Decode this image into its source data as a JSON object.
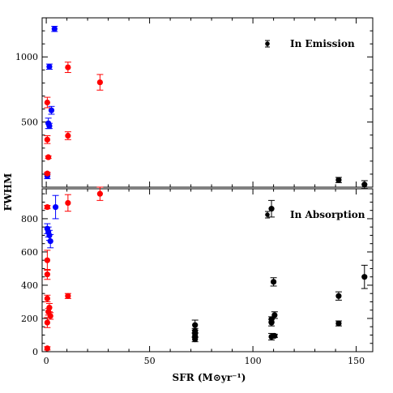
{
  "chart_data": {
    "type": "scatter",
    "xlabel": "SFR (M⊙yr⁻¹)",
    "ylabel": "FWHM",
    "xlim": [
      -2,
      158
    ],
    "x_ticks": [
      0,
      50,
      100,
      150
    ],
    "panels": [
      {
        "legend": "In Emission",
        "legend_position": "top-right",
        "ylim": [
          0,
          1300
        ],
        "y_ticks": [
          500,
          1000
        ],
        "series": [
          {
            "color": "#0000ff",
            "points": [
              {
                "x": 4.0,
                "y": 1215,
                "err": 20
              },
              {
                "x": 1.5,
                "y": 925,
                "err": 20
              },
              {
                "x": 2.5,
                "y": 590,
                "err": 30
              },
              {
                "x": 1.0,
                "y": 490,
                "err": 40
              },
              {
                "x": 1.5,
                "y": 470,
                "err": 20
              },
              {
                "x": 0.5,
                "y": 85,
                "err": 20
              }
            ]
          },
          {
            "color": "#ff0000",
            "points": [
              {
                "x": 10.5,
                "y": 920,
                "err": 40
              },
              {
                "x": 26.0,
                "y": 805,
                "err": 60
              },
              {
                "x": 0.5,
                "y": 650,
                "err": 40
              },
              {
                "x": 10.5,
                "y": 395,
                "err": 30
              },
              {
                "x": 0.5,
                "y": 365,
                "err": 30
              },
              {
                "x": 1.0,
                "y": 230,
                "err": 10
              },
              {
                "x": 0.5,
                "y": 105,
                "err": 10
              }
            ]
          },
          {
            "color": "#000000",
            "points": [
              {
                "x": 141.5,
                "y": 55,
                "err": 20
              },
              {
                "x": 154.0,
                "y": 20,
                "err": 30
              }
            ]
          }
        ]
      },
      {
        "legend": "In Absorption",
        "legend_position": "top-right",
        "ylim": [
          0,
          980
        ],
        "y_ticks": [
          0,
          200,
          400,
          600,
          800
        ],
        "series": [
          {
            "color": "#0000ff",
            "points": [
              {
                "x": 4.5,
                "y": 870,
                "err": 70
              },
              {
                "x": 0.5,
                "y": 740,
                "err": 30
              },
              {
                "x": 1.0,
                "y": 720,
                "err": 30
              },
              {
                "x": 1.5,
                "y": 700,
                "err": 30
              },
              {
                "x": 2.0,
                "y": 665,
                "err": 40
              }
            ]
          },
          {
            "color": "#ff0000",
            "points": [
              {
                "x": 0.5,
                "y": 870,
                "err": 10
              },
              {
                "x": 10.5,
                "y": 895,
                "err": 50
              },
              {
                "x": 26.0,
                "y": 950,
                "err": 40
              },
              {
                "x": 0.5,
                "y": 550,
                "err": 60
              },
              {
                "x": 0.5,
                "y": 465,
                "err": 30
              },
              {
                "x": 10.5,
                "y": 335,
                "err": 15
              },
              {
                "x": 0.5,
                "y": 320,
                "err": 20
              },
              {
                "x": 1.5,
                "y": 265,
                "err": 25
              },
              {
                "x": 1.0,
                "y": 240,
                "err": 20
              },
              {
                "x": 2.0,
                "y": 215,
                "err": 20
              },
              {
                "x": 0.5,
                "y": 175,
                "err": 30
              },
              {
                "x": 0.5,
                "y": 20,
                "err": 10
              }
            ]
          },
          {
            "color": "#000000",
            "points": [
              {
                "x": 109.0,
                "y": 860,
                "err": 50
              },
              {
                "x": 154.0,
                "y": 450,
                "err": 70
              },
              {
                "x": 110.0,
                "y": 420,
                "err": 25
              },
              {
                "x": 141.5,
                "y": 335,
                "err": 25
              },
              {
                "x": 110.5,
                "y": 220,
                "err": 20
              },
              {
                "x": 109.0,
                "y": 195,
                "err": 15
              },
              {
                "x": 109.0,
                "y": 175,
                "err": 20
              },
              {
                "x": 72.0,
                "y": 160,
                "err": 30
              },
              {
                "x": 141.5,
                "y": 170,
                "err": 15
              },
              {
                "x": 72.0,
                "y": 125,
                "err": 15
              },
              {
                "x": 72.0,
                "y": 100,
                "err": 15
              },
              {
                "x": 72.0,
                "y": 75,
                "err": 15
              },
              {
                "x": 109.0,
                "y": 90,
                "err": 20
              },
              {
                "x": 110.5,
                "y": 95,
                "err": 10
              }
            ]
          }
        ]
      }
    ]
  }
}
